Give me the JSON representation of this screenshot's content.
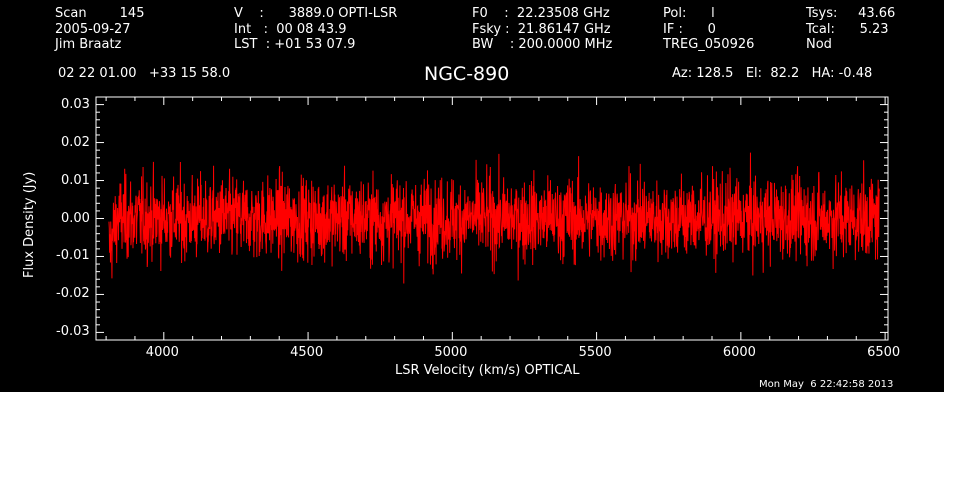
{
  "header": {
    "col1": [
      "Scan        145",
      "2005-09-27",
      "Jim Braatz"
    ],
    "col2": [
      "V    :      3889.0 OPTI-LSR",
      "Int   :  00 08 43.9",
      "LST  : +01 53 07.9"
    ],
    "col3": [
      "F0    :  22.23508 GHz",
      "Fsky :  21.86147 GHz",
      "BW    : 200.0000 MHz"
    ],
    "col4": [
      "Pol:      l",
      "IF :      0",
      "TREG_050926"
    ],
    "col5": [
      "Tsys:     43.66",
      "Tcal:      5.23",
      "Nod"
    ],
    "coords": "02 22 01.00   +33 15 58.0",
    "azel": "Az: 128.5   El:  82.2   HA: -0.48",
    "timestamp": "Mon May  6 22:42:58 2013"
  },
  "chart_data": {
    "type": "line",
    "title": "NGC-890",
    "xlabel": "LSR Velocity (km/s) OPTICAL",
    "ylabel": "Flux Density (Jy)",
    "xlim": [
      3765,
      6510
    ],
    "ylim": [
      -0.032,
      0.032
    ],
    "xticks": [
      4000,
      4500,
      5000,
      5500,
      6000,
      6500
    ],
    "xtick_labels": [
      "4000",
      "4500",
      "5000",
      "5500",
      "6000",
      "6500"
    ],
    "yticks": [
      -0.03,
      -0.02,
      -0.01,
      0.0,
      0.01,
      0.02,
      0.03
    ],
    "ytick_labels": [
      "-0.03",
      "-0.02",
      "-0.01",
      "0.00",
      "0.01",
      "0.02",
      "0.03"
    ],
    "series": [
      {
        "color": "#ff0000",
        "x_start": 3810,
        "x_end": 6480,
        "noise_rms_jy": 0.006,
        "mean_jy": 0.0,
        "min_jy": -0.025,
        "max_jy": 0.021
      }
    ]
  },
  "colors": {
    "background": "#000000",
    "axes": "#ffffff",
    "trace": "#ff0000",
    "page": "#ffffff"
  }
}
